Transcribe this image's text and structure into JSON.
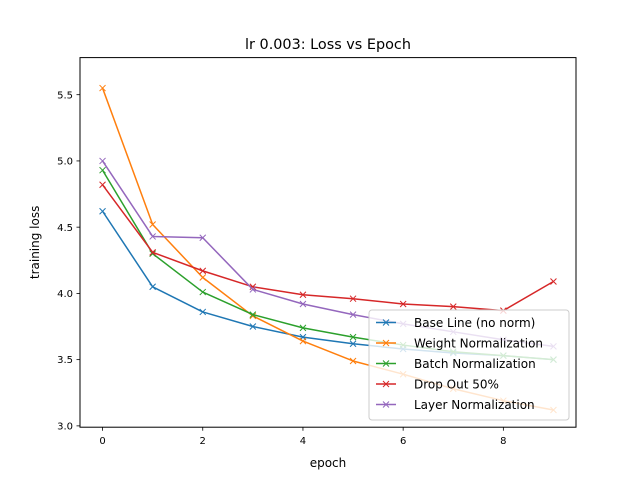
{
  "chart_data": {
    "type": "line",
    "title": "lr 0.003: Loss vs Epoch",
    "xlabel": "epoch",
    "ylabel": "training loss",
    "xlim": [
      -0.45,
      9.45
    ],
    "ylim": [
      2.99,
      5.78
    ],
    "xticks": [
      0,
      2,
      4,
      6,
      8
    ],
    "xtick_labels": [
      "0",
      "2",
      "4",
      "6",
      "8"
    ],
    "yticks": [
      3.0,
      3.5,
      4.0,
      4.5,
      5.0,
      5.5
    ],
    "ytick_labels": [
      "3.0",
      "3.5",
      "4.0",
      "4.5",
      "5.0",
      "5.5"
    ],
    "grid": false,
    "legend_position": "lower right",
    "marker": "x",
    "x": [
      0,
      1,
      2,
      3,
      4,
      5,
      6,
      7,
      8,
      9
    ],
    "series": [
      {
        "name": "Base Line (no norm)",
        "color": "#1f77b4",
        "values": [
          4.62,
          4.05,
          3.86,
          3.75,
          3.67,
          3.62,
          3.58,
          3.55,
          3.53,
          3.5
        ]
      },
      {
        "name": "Weight Normalization",
        "color": "#ff7f0e",
        "values": [
          5.55,
          4.52,
          4.12,
          3.83,
          3.64,
          3.49,
          3.39,
          3.28,
          3.19,
          3.12
        ]
      },
      {
        "name": "Batch Normalization",
        "color": "#2ca02c",
        "values": [
          4.93,
          4.3,
          4.01,
          3.84,
          3.74,
          3.67,
          3.61,
          3.56,
          3.53,
          3.5
        ]
      },
      {
        "name": "Drop Out 50%",
        "color": "#d62728",
        "values": [
          4.82,
          4.31,
          4.17,
          4.05,
          3.99,
          3.96,
          3.92,
          3.9,
          3.87,
          4.09
        ]
      },
      {
        "name": "Layer Normalization",
        "color": "#9467bd",
        "values": [
          5.0,
          4.43,
          4.42,
          4.03,
          3.92,
          3.84,
          3.77,
          3.71,
          3.65,
          3.6
        ]
      }
    ]
  }
}
